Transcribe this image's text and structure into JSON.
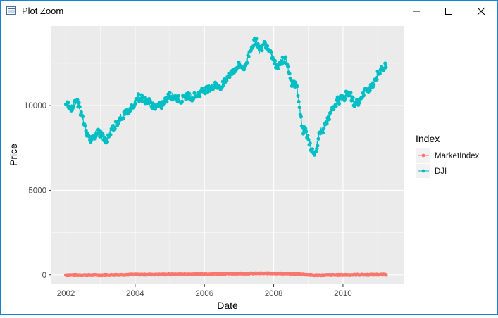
{
  "window": {
    "title": "Plot Zoom",
    "buttons": {
      "minimize": "minimize-icon",
      "maximize": "maximize-icon",
      "close": "close-icon"
    }
  },
  "chart_data": {
    "type": "line",
    "xlabel": "Date",
    "ylabel": "Price",
    "x_ticks": [
      "2002",
      "2004",
      "2006",
      "2008",
      "2010"
    ],
    "y_ticks": [
      "0",
      "5000",
      "10000"
    ],
    "xlim": [
      "2001-08",
      "2011-10"
    ],
    "ylim": [
      -550,
      14700
    ],
    "grid": true,
    "legend": {
      "title": "Index",
      "placement": "right",
      "entries": [
        "MarketIndex",
        "DJI"
      ]
    },
    "series": [
      {
        "name": "MarketIndex",
        "color": "#f8766d",
        "x": [
          "2002-01",
          "2003-01",
          "2004-01",
          "2005-01",
          "2006-01",
          "2007-01",
          "2008-01",
          "2008-09",
          "2009-03",
          "2010-01",
          "2011-04"
        ],
        "y": [
          -10,
          -10,
          20,
          30,
          50,
          80,
          90,
          60,
          -20,
          0,
          20
        ]
      },
      {
        "name": "DJI",
        "color": "#00bfc4",
        "x": [
          "2002-01",
          "2002-03",
          "2002-05",
          "2002-07",
          "2002-08",
          "2002-10",
          "2002-12",
          "2003-03",
          "2003-05",
          "2003-08",
          "2003-11",
          "2004-02",
          "2004-04",
          "2004-06",
          "2004-08",
          "2004-10",
          "2005-01",
          "2005-03",
          "2005-05",
          "2005-07",
          "2005-09",
          "2005-11",
          "2006-01",
          "2006-03",
          "2006-05",
          "2006-07",
          "2006-10",
          "2007-01",
          "2007-03",
          "2007-05",
          "2007-07",
          "2007-08",
          "2007-10",
          "2007-12",
          "2008-02",
          "2008-05",
          "2008-07",
          "2008-09",
          "2008-11",
          "2008-12",
          "2009-02",
          "2009-03",
          "2009-05",
          "2009-07",
          "2009-09",
          "2009-11",
          "2010-01",
          "2010-03",
          "2010-05",
          "2010-07",
          "2010-09",
          "2010-11",
          "2011-01",
          "2011-04"
        ],
        "y": [
          10050,
          9900,
          10300,
          9100,
          8400,
          8000,
          8500,
          7900,
          8600,
          9300,
          9700,
          10500,
          10400,
          10200,
          9900,
          10000,
          10600,
          10500,
          10300,
          10600,
          10500,
          10700,
          10900,
          11100,
          11200,
          11100,
          11900,
          12400,
          12200,
          13400,
          13900,
          13200,
          13700,
          13200,
          12300,
          12800,
          11400,
          11200,
          8500,
          8600,
          7500,
          7000,
          8400,
          8800,
          9600,
          10300,
          10400,
          10800,
          10100,
          10300,
          10900,
          11200,
          11800,
          12500
        ]
      }
    ]
  }
}
